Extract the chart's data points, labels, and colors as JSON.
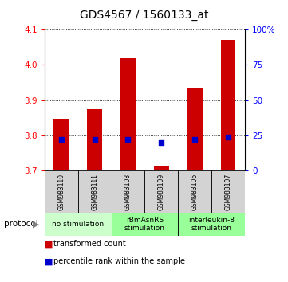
{
  "title": "GDS4567 / 1560133_at",
  "samples": [
    "GSM983110",
    "GSM983111",
    "GSM983108",
    "GSM983109",
    "GSM983106",
    "GSM983107"
  ],
  "transformed_counts": [
    3.845,
    3.875,
    4.02,
    3.715,
    3.935,
    4.07
  ],
  "percentile_ranks": [
    22,
    22,
    22,
    20,
    22,
    24
  ],
  "ylim_left": [
    3.7,
    4.1
  ],
  "ylim_right": [
    0,
    100
  ],
  "yticks_left": [
    3.7,
    3.8,
    3.9,
    4.0,
    4.1
  ],
  "yticks_right": [
    0,
    25,
    50,
    75,
    100
  ],
  "bar_bottom": 3.7,
  "bar_color": "#cc0000",
  "dot_color": "#0000cc",
  "group_colors": [
    "#ccffcc",
    "#99ff99",
    "#99ff99"
  ],
  "group_ranges": [
    [
      0,
      1
    ],
    [
      2,
      3
    ],
    [
      4,
      5
    ]
  ],
  "group_labels": [
    "no stimulation",
    "rBmAsnRS\nstimulation",
    "interleukin-8\nstimulation"
  ],
  "protocol_label": "protocol",
  "legend_items": [
    {
      "color": "#cc0000",
      "label": "transformed count"
    },
    {
      "color": "#0000cc",
      "label": "percentile rank within the sample"
    }
  ],
  "title_fontsize": 10,
  "tick_fontsize": 7.5,
  "sample_fontsize": 5.5,
  "group_fontsize": 6.5,
  "legend_fontsize": 7
}
